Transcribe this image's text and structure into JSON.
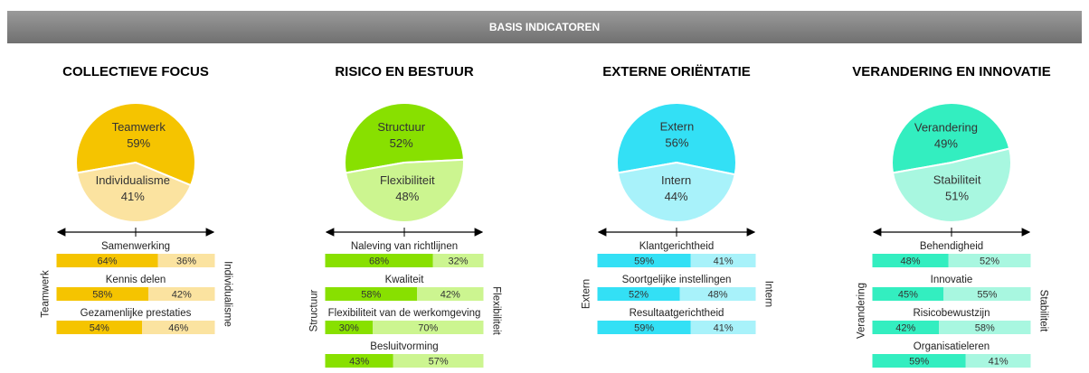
{
  "title": "BASIS INDICATOREN",
  "chart_data": [
    {
      "type": "pie",
      "title": "COLLECTIEVE FOCUS",
      "categories": [
        "Teamwerk",
        "Individualisme"
      ],
      "values": [
        59,
        41
      ],
      "value_labels": [
        "59%",
        "41%"
      ],
      "colors": [
        "#F5C400",
        "#FBE3A0"
      ]
    },
    {
      "type": "bar",
      "orientation": "horizontal",
      "stacked": true,
      "xlim": [
        0,
        100
      ],
      "categories": [
        "Samenwerking",
        "Kennis delen",
        "Gezamenlijke prestaties"
      ],
      "series": [
        {
          "name": "Teamwerk",
          "color": "#F5C400",
          "values": [
            64,
            58,
            54
          ],
          "value_labels": [
            "64%",
            "58%",
            "54%"
          ]
        },
        {
          "name": "Individualisme",
          "color": "#FBE3A0",
          "values": [
            36,
            42,
            46
          ],
          "value_labels": [
            "36%",
            "42%",
            "46%"
          ]
        }
      ]
    },
    {
      "type": "pie",
      "title": "RISICO EN BESTUUR",
      "categories": [
        "Structuur",
        "Flexibiliteit"
      ],
      "values": [
        52,
        48
      ],
      "value_labels": [
        "52%",
        "48%"
      ],
      "colors": [
        "#88E000",
        "#CCF590"
      ]
    },
    {
      "type": "bar",
      "orientation": "horizontal",
      "stacked": true,
      "xlim": [
        0,
        100
      ],
      "categories": [
        "Naleving van richtlijnen",
        "Kwaliteit",
        "Flexibiliteit van de werkomgeving",
        "Besluitvorming"
      ],
      "series": [
        {
          "name": "Structuur",
          "color": "#88E000",
          "values": [
            68,
            58,
            30,
            43
          ],
          "value_labels": [
            "68%",
            "58%",
            "30%",
            "43%"
          ]
        },
        {
          "name": "Flexibiliteit",
          "color": "#CCF590",
          "values": [
            32,
            42,
            70,
            57
          ],
          "value_labels": [
            "32%",
            "42%",
            "70%",
            "57%"
          ]
        }
      ]
    },
    {
      "type": "pie",
      "title": "EXTERNE ORIËNTATIE",
      "categories": [
        "Extern",
        "Intern"
      ],
      "values": [
        56,
        44
      ],
      "value_labels": [
        "56%",
        "44%"
      ],
      "colors": [
        "#33E0F5",
        "#A8F2FA"
      ]
    },
    {
      "type": "bar",
      "orientation": "horizontal",
      "stacked": true,
      "xlim": [
        0,
        100
      ],
      "categories": [
        "Klantgerichtheid",
        "Soortgelijke instellingen",
        "Resultaatgerichtheid"
      ],
      "series": [
        {
          "name": "Extern",
          "color": "#33E0F5",
          "values": [
            59,
            52,
            59
          ],
          "value_labels": [
            "59%",
            "52%",
            "59%"
          ]
        },
        {
          "name": "Intern",
          "color": "#A8F2FA",
          "values": [
            41,
            48,
            41
          ],
          "value_labels": [
            "41%",
            "48%",
            "41%"
          ]
        }
      ]
    },
    {
      "type": "pie",
      "title": "VERANDERING EN INNOVATIE",
      "categories": [
        "Verandering",
        "Stabiliteit"
      ],
      "values": [
        49,
        51
      ],
      "value_labels": [
        "49%",
        "51%"
      ],
      "colors": [
        "#33EEC0",
        "#A8F7E0"
      ]
    },
    {
      "type": "bar",
      "orientation": "horizontal",
      "stacked": true,
      "xlim": [
        0,
        100
      ],
      "categories": [
        "Behendigheid",
        "Innovatie",
        "Risicobewustzijn",
        "Organisatieleren"
      ],
      "series": [
        {
          "name": "Verandering",
          "color": "#33EEC0",
          "values": [
            48,
            45,
            42,
            59
          ],
          "value_labels": [
            "48%",
            "45%",
            "42%",
            "59%"
          ]
        },
        {
          "name": "Stabiliteit",
          "color": "#A8F7E0",
          "values": [
            52,
            55,
            58,
            41
          ],
          "value_labels": [
            "52%",
            "55%",
            "58%",
            "41%"
          ]
        }
      ]
    }
  ]
}
